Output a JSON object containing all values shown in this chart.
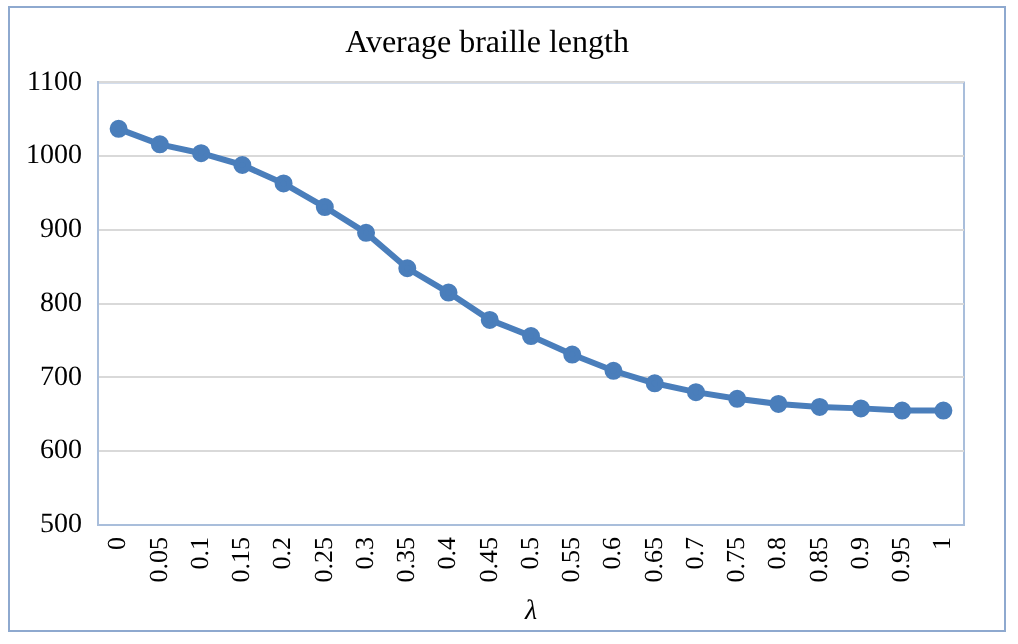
{
  "chart_data": {
    "type": "line",
    "title": "Average braille length",
    "xlabel": "λ",
    "categories": [
      "0",
      "0.05",
      "0.1",
      "0.15",
      "0.2",
      "0.25",
      "0.3",
      "0.35",
      "0.4",
      "0.45",
      "0.5",
      "0.55",
      "0.6",
      "0.65",
      "0.7",
      "0.75",
      "0.8",
      "0.85",
      "0.9",
      "0.95",
      "1"
    ],
    "series": [
      {
        "color": "#4a7ebb",
        "values": [
          1037,
          1016,
          1004,
          988,
          963,
          931,
          896,
          848,
          815,
          778,
          756,
          731,
          709,
          692,
          680,
          671,
          664,
          660,
          658,
          655,
          655
        ]
      }
    ],
    "ylim": [
      500,
      1100
    ],
    "yticks": [
      500,
      600,
      700,
      800,
      900,
      1000,
      1100
    ],
    "grid": "y",
    "marker": "circle",
    "line_style": "solid"
  }
}
